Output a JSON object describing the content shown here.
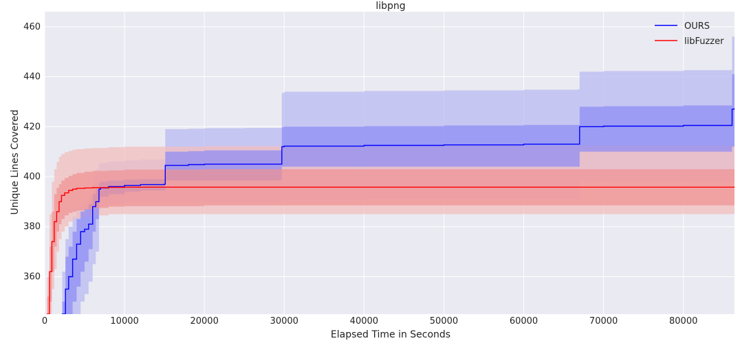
{
  "chart_data": {
    "type": "line",
    "title": "libpng",
    "xlabel": "Elapsed Time in Seconds",
    "ylabel": "Unique Lines Covered",
    "xlim": [
      0,
      86400
    ],
    "ylim": [
      345,
      466
    ],
    "xticks": [
      0,
      10000,
      20000,
      30000,
      40000,
      50000,
      60000,
      70000,
      80000
    ],
    "yticks": [
      360,
      380,
      400,
      420,
      440,
      460
    ],
    "grid": true,
    "legend_position": "top-right",
    "series": [
      {
        "name": "OURS",
        "color": "#0000ff",
        "band_inner_color": "#8a8af5",
        "band_outer_color": "#b9b9f2",
        "x": [
          0,
          1500,
          2200,
          2600,
          3000,
          3500,
          4000,
          4500,
          5000,
          5500,
          6000,
          6400,
          6800,
          7000,
          8000,
          10000,
          12000,
          15000,
          15100,
          18000,
          20000,
          25000,
          29500,
          29700,
          30000,
          40000,
          50000,
          60000,
          66800,
          67000,
          70000,
          80000,
          86000,
          86100,
          86400
        ],
        "y": [
          340,
          340,
          345,
          355,
          360,
          367,
          373,
          378,
          379,
          381,
          388,
          390,
          395,
          395.5,
          396,
          396.5,
          396.8,
          397,
          404.5,
          404.8,
          405,
          405,
          405,
          412,
          412.2,
          412.5,
          412.7,
          413,
          413,
          420,
          420.2,
          420.5,
          420.5,
          427,
          427.5
        ],
        "band_inner_low": [
          340,
          340,
          340,
          340,
          345,
          350,
          356,
          362,
          366,
          371,
          378,
          383,
          391,
          392,
          393,
          394,
          394.5,
          394.5,
          398.5,
          398.5,
          398.5,
          398.5,
          398.5,
          404,
          404,
          404,
          404,
          404,
          404,
          410,
          410,
          410,
          410,
          412,
          412
        ],
        "band_inner_high": [
          340,
          340,
          350,
          368,
          372,
          378,
          383,
          386,
          387,
          389,
          393,
          395,
          397.5,
          398,
          398.5,
          398.8,
          399,
          399.5,
          410,
          410.2,
          410.5,
          410.5,
          410.5,
          419.8,
          420,
          420.2,
          420.5,
          420.7,
          420.7,
          428,
          428.2,
          428.5,
          428.5,
          441,
          441
        ],
        "band_outer_low": [
          340,
          340,
          340,
          340,
          340,
          340,
          345,
          350,
          353,
          358,
          365,
          370,
          387,
          388,
          389,
          390,
          390,
          390,
          390,
          390,
          390,
          390,
          390,
          390.5,
          390.5,
          391,
          391,
          391,
          391,
          398,
          398,
          398,
          398,
          398,
          398
        ],
        "band_outer_high": [
          340,
          345,
          362,
          375,
          380,
          384,
          387,
          389,
          390,
          392,
          400,
          403,
          405,
          405.5,
          406,
          406.5,
          406.8,
          407,
          419,
          419.2,
          419.4,
          419.5,
          419.5,
          433.5,
          434,
          434.3,
          434.5,
          434.8,
          435,
          442,
          442.3,
          442.6,
          442.8,
          456,
          456
        ]
      },
      {
        "name": "libFuzzer",
        "color": "#ff0000",
        "band_inner_color": "#f09191",
        "band_outer_color": "#f2bdbd",
        "x": [
          0,
          300,
          600,
          900,
          1200,
          1500,
          1800,
          2100,
          2500,
          3000,
          3500,
          4000,
          5000,
          6000,
          8000,
          10000,
          20000,
          40000,
          60000,
          80000,
          86400
        ],
        "y": [
          340,
          345,
          362,
          374,
          382,
          386,
          390,
          392.5,
          393.5,
          394.5,
          395,
          395.3,
          395.5,
          395.6,
          395.7,
          395.8,
          395.8,
          395.8,
          395.8,
          395.8,
          395.8
        ],
        "band_inner_low": [
          340,
          340,
          350,
          362,
          372,
          378,
          381,
          383,
          384.5,
          385.5,
          386,
          386.5,
          387,
          387.5,
          388,
          388.2,
          388.5,
          388.5,
          388.5,
          388.5,
          388.5
        ],
        "band_inner_high": [
          340,
          352,
          372,
          386,
          393,
          395.5,
          397,
          398.5,
          399.5,
          400.3,
          401,
          401.5,
          402,
          402.3,
          402.5,
          402.8,
          403,
          403,
          403,
          403,
          403
        ],
        "band_outer_low": [
          340,
          340,
          345,
          355,
          363,
          370,
          375,
          378,
          380,
          382,
          383,
          383.5,
          384,
          384.5,
          385,
          385,
          385,
          385,
          385,
          385,
          385
        ],
        "band_outer_high": [
          340,
          360,
          385,
          398,
          403,
          406,
          408,
          409,
          409.8,
          410.3,
          410.8,
          411,
          411.3,
          411.5,
          411.8,
          412,
          412.2,
          412.3,
          412.4,
          412.5,
          412.5
        ]
      }
    ]
  }
}
